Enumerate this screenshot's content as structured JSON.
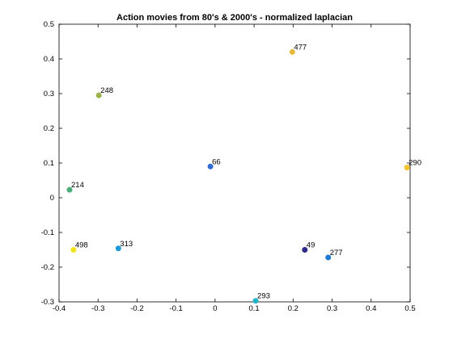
{
  "chart_data": {
    "type": "scatter",
    "title": "Action movies from 80's & 2000's - normalized laplacian",
    "xlabel": "",
    "ylabel": "",
    "xlim": [
      -0.4,
      0.5
    ],
    "ylim": [
      -0.3,
      0.5
    ],
    "xticks": [
      "-0.4",
      "-0.3",
      "-0.2",
      "-0.1",
      "0",
      "0.1",
      "0.2",
      "0.3",
      "0.4",
      "0.5"
    ],
    "yticks": [
      "-0.3",
      "-0.2",
      "-0.1",
      "0",
      "0.1",
      "0.2",
      "0.3",
      "0.4",
      "0.5"
    ],
    "grid": false,
    "points": [
      {
        "label": "477",
        "x": 0.198,
        "y": 0.42,
        "color": "#e8b83a"
      },
      {
        "label": "248",
        "x": -0.298,
        "y": 0.295,
        "color": "#9ab34a"
      },
      {
        "label": "66",
        "x": -0.012,
        "y": 0.09,
        "color": "#2f6bd4"
      },
      {
        "label": "290",
        "x": 0.492,
        "y": 0.087,
        "color": "#f4c531"
      },
      {
        "label": "214",
        "x": -0.373,
        "y": 0.023,
        "color": "#4aad7a"
      },
      {
        "label": "498",
        "x": -0.363,
        "y": -0.15,
        "color": "#f2e31c"
      },
      {
        "label": "313",
        "x": -0.248,
        "y": -0.146,
        "color": "#1e9ad6"
      },
      {
        "label": "49",
        "x": 0.23,
        "y": -0.15,
        "color": "#2c2a88"
      },
      {
        "label": "277",
        "x": 0.29,
        "y": -0.172,
        "color": "#1f78d1"
      },
      {
        "label": "293",
        "x": 0.104,
        "y": -0.297,
        "color": "#22b4c8"
      }
    ]
  }
}
